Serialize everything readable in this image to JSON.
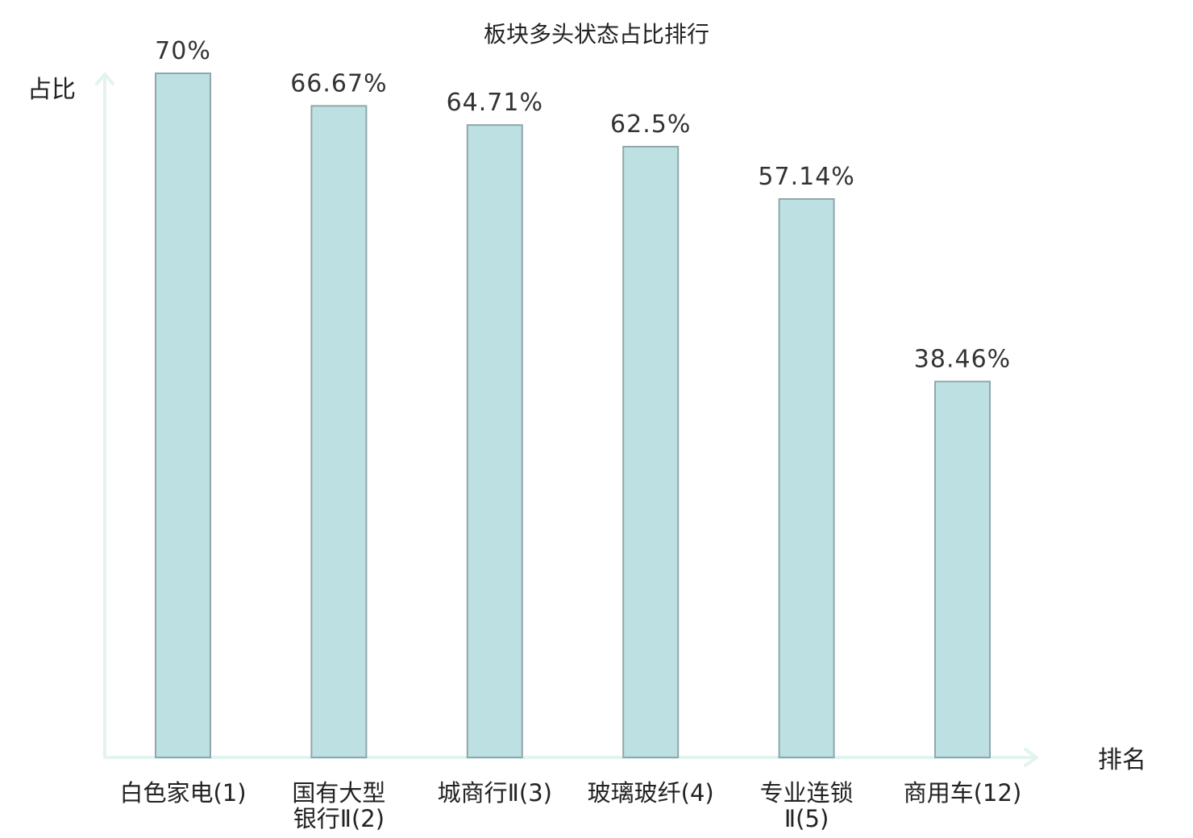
{
  "chart_data": {
    "type": "bar",
    "title": "板块多头状态占比排行",
    "ylabel": "占比",
    "xlabel": "排名",
    "ylim": [
      0,
      70
    ],
    "categories": [
      [
        "白色家电(1)"
      ],
      [
        "国有大型",
        "银行Ⅱ(2)"
      ],
      [
        "城商行Ⅱ(3)"
      ],
      [
        "玻璃玻纤(4)"
      ],
      [
        "专业连锁",
        "Ⅱ(5)"
      ],
      [
        "商用车(12)"
      ]
    ],
    "values": [
      70,
      66.67,
      64.71,
      62.5,
      57.14,
      38.46
    ],
    "value_labels": [
      "70%",
      "66.67%",
      "64.71%",
      "62.5%",
      "57.14%",
      "38.46%"
    ],
    "highlight_index": 5,
    "colors": {
      "bar_fill": "#bde0e3",
      "bar_stroke": "#8fa7aa",
      "axis": "#e2f3f0",
      "highlight": "#e8281f",
      "text": "#222222"
    }
  }
}
